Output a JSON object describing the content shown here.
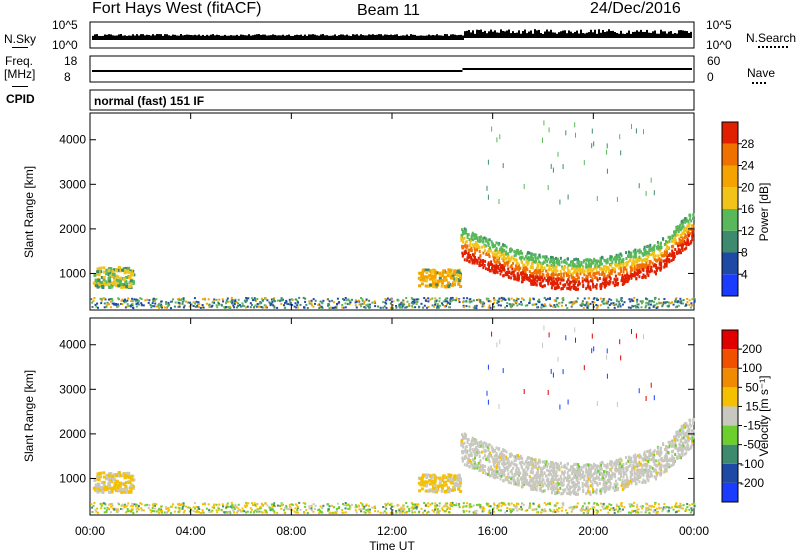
{
  "header": {
    "station": "Fort Hays West (fitACF)",
    "beam": "Beam 11",
    "date": "24/Dec/2016"
  },
  "strip": {
    "nsky_label": "N.Sky",
    "nsearch_label": "N.Search",
    "nsky_ticks": [
      "10^5",
      "10^0"
    ],
    "nsearch_ticks": [
      "10^5",
      "10^0"
    ],
    "freq_label_line1": "Freq.",
    "freq_label_line2": "[MHz]",
    "freq_ticks": [
      "18",
      "8"
    ],
    "nave_label": "Nave",
    "nave_ticks": [
      "60",
      "0"
    ],
    "cpid_label": "CPID",
    "cpid_value": "normal (fast) 151 IF"
  },
  "chart_data": [
    {
      "type": "heatmap",
      "name": "power",
      "ylabel": "Slant Range [km]",
      "yticks": [
        1000,
        2000,
        3000,
        4000
      ],
      "ylim": [
        180,
        4600
      ],
      "colorbar_label": "Power [dB]",
      "colorbar_ticks": [
        "4",
        "8",
        "12",
        "16",
        "20",
        "24",
        "28"
      ],
      "colors": [
        "#1a3cff",
        "#1e4aa6",
        "#3d8a6e",
        "#58b85a",
        "#f2c419",
        "#f5a300",
        "#f07000",
        "#e02000"
      ]
    },
    {
      "type": "heatmap",
      "name": "velocity",
      "ylabel": "Slant Range [km]",
      "yticks": [
        1000,
        2000,
        3000,
        4000
      ],
      "ylim": [
        180,
        4600
      ],
      "xlabel": "Time UT",
      "xticks": [
        "00:00",
        "04:00",
        "08:00",
        "12:00",
        "16:00",
        "20:00",
        "00:00"
      ],
      "colorbar_label": "Velocity [m s⁻¹]",
      "colorbar_ticks": [
        "200",
        "100",
        "50",
        "15",
        "-15",
        "-50",
        "-100",
        "-200"
      ],
      "colors": [
        "#1a3cff",
        "#1e4aa6",
        "#3d8a6e",
        "#6ccf2e",
        "#c8c8c0",
        "#f5c000",
        "#f08a00",
        "#f05000",
        "#e00000"
      ]
    }
  ]
}
